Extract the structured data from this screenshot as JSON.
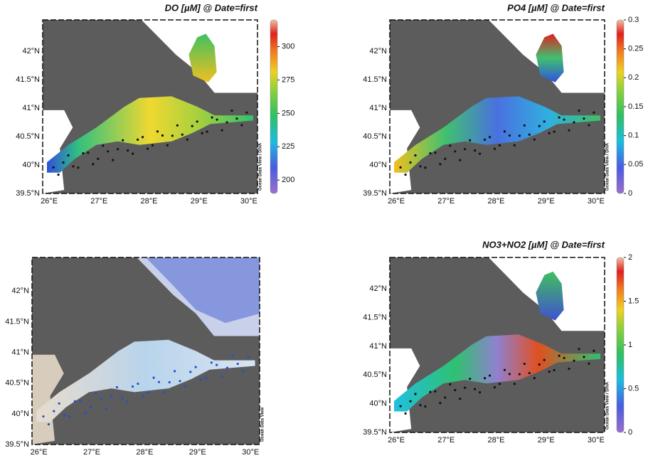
{
  "panels": [
    {
      "title": "DO [µM] @ Date=first",
      "lat_labels": [
        "42°N",
        "41.5°N",
        "41°N",
        "40.5°N",
        "40°N",
        "39.5°N"
      ],
      "lon_labels": [
        "26°E",
        "27°E",
        "28°E",
        "29°E",
        "30°E"
      ],
      "colorbar": {
        "range": [
          190,
          320
        ],
        "ticks": [
          200,
          225,
          250,
          275,
          300
        ]
      },
      "watermark": "Ocean Data View / DIVA"
    },
    {
      "title": "PO4 [µM] @ Date=first",
      "lat_labels": [
        "42°N",
        "41.5°N",
        "41°N",
        "40.5°N",
        "40°N",
        "39.5°N"
      ],
      "lon_labels": [
        "26°E",
        "27°E",
        "28°E",
        "29°E",
        "30°E"
      ],
      "colorbar": {
        "range": [
          0,
          0.3
        ],
        "ticks": [
          0,
          0.05,
          0.1,
          0.15,
          0.2,
          0.25,
          0.3
        ]
      },
      "watermark": "Ocean Data View / DIVA"
    },
    {
      "lat_labels": [
        "42°N",
        "41.5°N",
        "41°N",
        "40.5°N",
        "40°N",
        "39.5°N"
      ],
      "lon_labels": [
        "26°E",
        "27°E",
        "28°E",
        "29°E",
        "30°E"
      ],
      "watermark": "Ocean Data View"
    },
    {
      "title": "NO3+NO2 [µM] @ Date=first",
      "lat_labels": [
        "42°N",
        "41.5°N",
        "41°N",
        "40.5°N",
        "40°N",
        "39.5°N"
      ],
      "lon_labels": [
        "26°E",
        "27°E",
        "28°E",
        "29°E",
        "30°E"
      ],
      "colorbar": {
        "range": [
          0,
          2
        ],
        "ticks": [
          0,
          0.5,
          1,
          1.5,
          2
        ]
      },
      "watermark": "Ocean Data View / DIVA"
    }
  ]
}
